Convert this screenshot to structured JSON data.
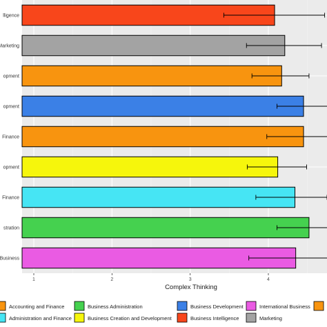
{
  "chart_data": {
    "type": "bar",
    "orientation": "horizontal",
    "title": "",
    "xlabel": "Complex Thinking",
    "ylabel": "",
    "xlim": [
      0.85,
      4.75
    ],
    "x_ticks": [
      1,
      2,
      3,
      4
    ],
    "grid": true,
    "error_bars": true,
    "legend_position": "bottom",
    "categories": [
      {
        "label": "lligence",
        "value": 4.08,
        "err_low": 3.43,
        "err_high": 4.72,
        "color": "#F8461B"
      },
      {
        "label": "Marketing",
        "value": 4.21,
        "err_low": 3.72,
        "err_high": 4.68,
        "color": "#A3A3A3"
      },
      {
        "label": "opment",
        "value": 4.17,
        "err_low": 3.79,
        "err_high": 4.52,
        "color": "#F8940F"
      },
      {
        "label": "opment",
        "value": 4.45,
        "err_low": 4.11,
        "err_high": 4.78,
        "color": "#3B80E6"
      },
      {
        "label": "Finance",
        "value": 4.45,
        "err_low": 3.98,
        "err_high": 4.86,
        "color": "#F8940F"
      },
      {
        "label": "opment",
        "value": 4.12,
        "err_low": 3.73,
        "err_high": 4.49,
        "color": "#F6F60C"
      },
      {
        "label": "Finance",
        "value": 4.34,
        "err_low": 3.84,
        "err_high": 4.75,
        "color": "#46E5F4"
      },
      {
        "label": "stration",
        "value": 4.52,
        "err_low": 4.11,
        "err_high": 4.88,
        "color": "#45D14F"
      },
      {
        "label": "Business",
        "value": 4.35,
        "err_low": 3.75,
        "err_high": 4.85,
        "color": "#EA5BE3"
      }
    ],
    "legend": [
      {
        "label": "Accounting and Finance",
        "color": "#F8940F"
      },
      {
        "label": "Business Administration",
        "color": "#45D14F"
      },
      {
        "label": "Business Development",
        "color": "#3B80E6"
      },
      {
        "label": "International Business",
        "color": "#EA5BE3"
      },
      {
        "label": "",
        "color": "#F8940F"
      },
      {
        "label": "Administration and Finance",
        "color": "#46E5F4"
      },
      {
        "label": "Business Creation and Development",
        "color": "#F6F60C"
      },
      {
        "label": "Business Intelligence",
        "color": "#F8461B"
      },
      {
        "label": "Marketing",
        "color": "#A3A3A3"
      }
    ]
  }
}
